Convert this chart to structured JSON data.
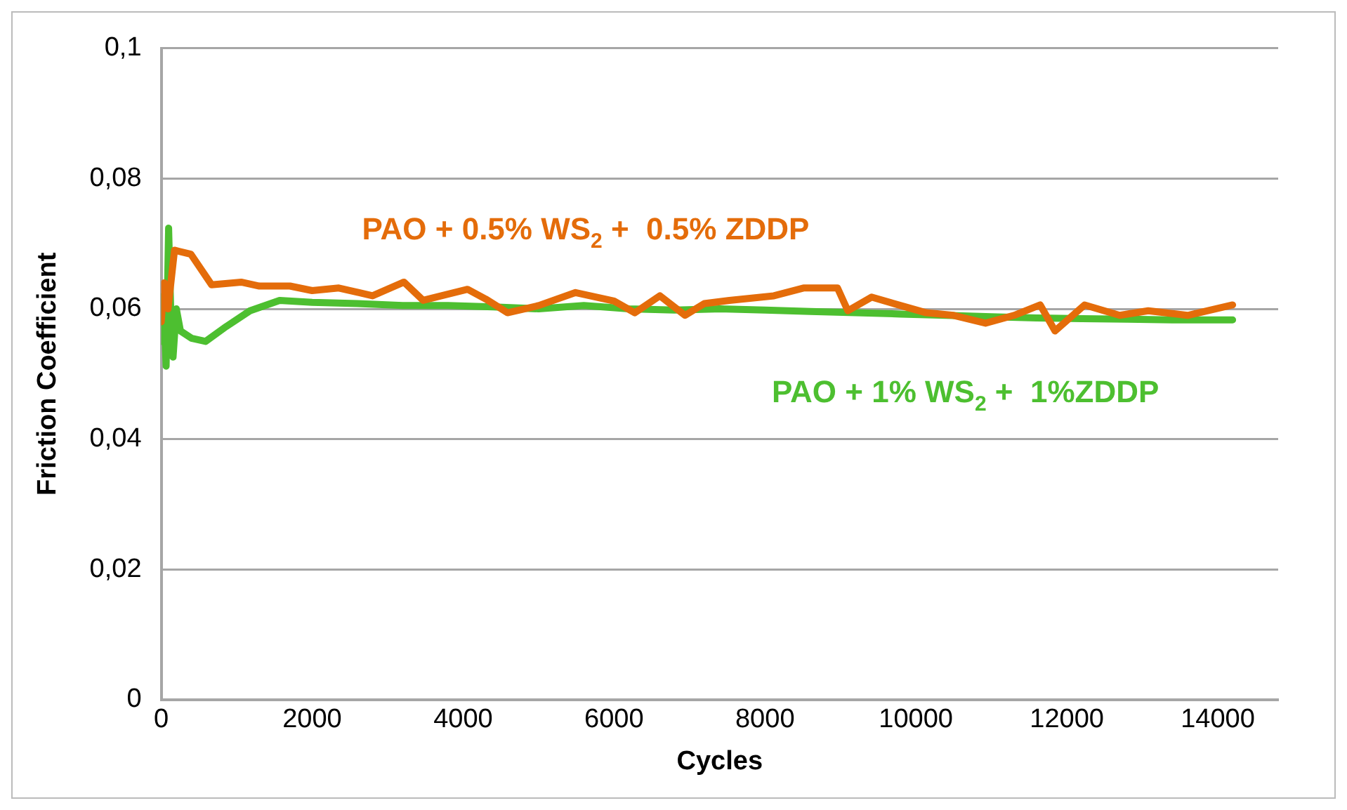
{
  "chart_data": {
    "type": "line",
    "xlabel": "Cycles",
    "ylabel": "Friction Coefficient",
    "xlim": [
      0,
      14800
    ],
    "xticks": [
      0,
      2000,
      4000,
      6000,
      8000,
      10000,
      12000,
      14000
    ],
    "ylim": [
      0,
      0.1
    ],
    "yticks": [
      {
        "value": 0,
        "label": "0"
      },
      {
        "value": 0.02,
        "label": "0,02"
      },
      {
        "value": 0.04,
        "label": "0,04"
      },
      {
        "value": 0.06,
        "label": "0,06"
      },
      {
        "value": 0.08,
        "label": "0,08"
      },
      {
        "value": 0.1,
        "label": "0,1"
      }
    ],
    "grid": "y",
    "legend": false,
    "marker": "none",
    "line_style": "solid",
    "series": [
      {
        "color": "#e46c0a",
        "x": [
          0,
          40,
          90,
          176,
          392,
          667,
          1059,
          1300,
          1706,
          2000,
          2353,
          2800,
          3216,
          3470,
          4059,
          4300,
          4588,
          5000,
          5490,
          6000,
          6275,
          6608,
          6941,
          7196,
          7529,
          8118,
          8510,
          8961,
          9098,
          9412,
          9800,
          10137,
          10500,
          10922,
          11300,
          11647,
          11843,
          12235,
          12700,
          13078,
          13600,
          14196
        ],
        "values": [
          0.058,
          0.064,
          0.06,
          0.069,
          0.0684,
          0.0637,
          0.0641,
          0.0635,
          0.0635,
          0.0628,
          0.0632,
          0.062,
          0.0641,
          0.0613,
          0.063,
          0.0615,
          0.0594,
          0.0605,
          0.0625,
          0.0612,
          0.0594,
          0.062,
          0.059,
          0.0608,
          0.0613,
          0.062,
          0.0632,
          0.0632,
          0.0597,
          0.0618,
          0.0605,
          0.0594,
          0.059,
          0.0578,
          0.059,
          0.0606,
          0.0566,
          0.0606,
          0.059,
          0.0597,
          0.059,
          0.0606
        ]
      },
      {
        "color": "#4dbf30",
        "x": [
          0,
          30,
          65,
          98,
          130,
          157,
          200,
          255,
          400,
          588,
          863,
          1176,
          1569,
          2000,
          2600,
          3200,
          3800,
          4400,
          5000,
          5600,
          6200,
          6800,
          7400,
          8000,
          8600,
          9200,
          9800,
          10400,
          11000,
          11600,
          12200,
          12800,
          13400,
          14196
        ],
        "values": [
          0.055,
          0.062,
          0.0512,
          0.0724,
          0.058,
          0.0526,
          0.06,
          0.0566,
          0.0555,
          0.055,
          0.0573,
          0.0597,
          0.0613,
          0.061,
          0.0608,
          0.0605,
          0.0605,
          0.0603,
          0.06,
          0.0605,
          0.06,
          0.0598,
          0.06,
          0.0598,
          0.0596,
          0.0594,
          0.0592,
          0.059,
          0.0588,
          0.0586,
          0.0585,
          0.0584,
          0.0583,
          0.0583
        ]
      }
    ],
    "annotations": [
      "PAO + 0.5% WS$_{2}$ +  0.5% ZDDP",
      "PAO + 1% WS$_{2}$ +  1%ZDDP"
    ]
  }
}
